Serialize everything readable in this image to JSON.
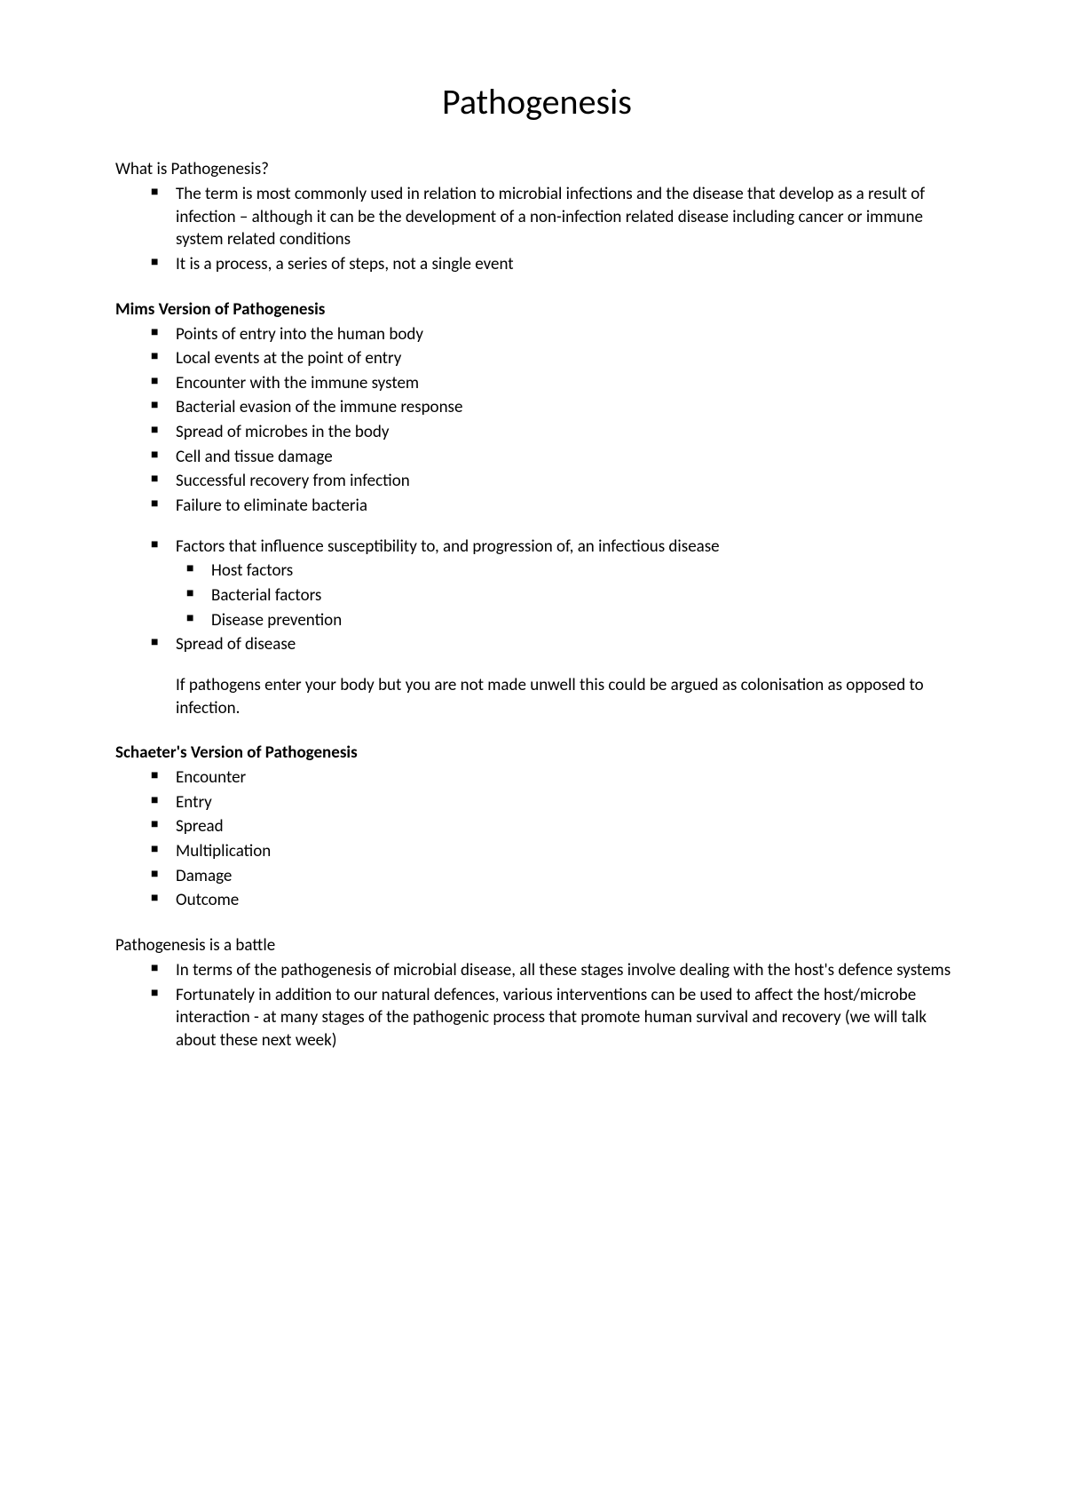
{
  "title": "Pathogenesis",
  "section1": {
    "heading": "What is Pathogenesis?",
    "items": [
      "The term is most commonly used in relation to microbial infections and the disease that develop as a result of infection – although it can be the development of a non-infection related disease including cancer or immune system related conditions",
      "It is a process, a series of steps, not a single event"
    ]
  },
  "section2": {
    "heading": "Mims Version of Pathogenesis",
    "items": [
      "Points of entry into the human body",
      "Local events at the point of entry",
      "Encounter with the immune system",
      "Bacterial evasion of the immune response",
      "Spread of microbes in the body",
      "Cell and tissue damage",
      "Successful recovery from infection",
      "Failure to eliminate bacteria"
    ],
    "factorsItem": "Factors that influence susceptibility to, and progression of, an infectious disease",
    "factorsSubItems": [
      "Host factors",
      "Bacterial factors",
      "Disease prevention"
    ],
    "spreadItem": "Spread of disease",
    "note": "If pathogens enter your body but you are not made unwell this could be argued as colonisation as opposed to infection."
  },
  "section3": {
    "heading": "Schaeter's Version of Pathogenesis",
    "items": [
      "Encounter",
      "Entry",
      "Spread",
      "Multiplication",
      "Damage",
      "Outcome"
    ]
  },
  "section4": {
    "heading": "Pathogenesis is a battle",
    "items": [
      "In terms of the pathogenesis of microbial disease, all these stages involve dealing with the host's defence systems",
      "Fortunately in addition to our natural defences,  various interventions can be used to affect the host/microbe interaction - at many stages of the pathogenic process that promote human survival and recovery (we will talk about these next week)"
    ]
  },
  "styling": {
    "backgroundColor": "#ffffff",
    "textColor": "#000000",
    "fontFamily": "Calibri",
    "titleFontSize": 40,
    "bodyFontSize": 19,
    "bulletChar": "■",
    "pageWidth": 1200,
    "pageHeight": 1698
  }
}
